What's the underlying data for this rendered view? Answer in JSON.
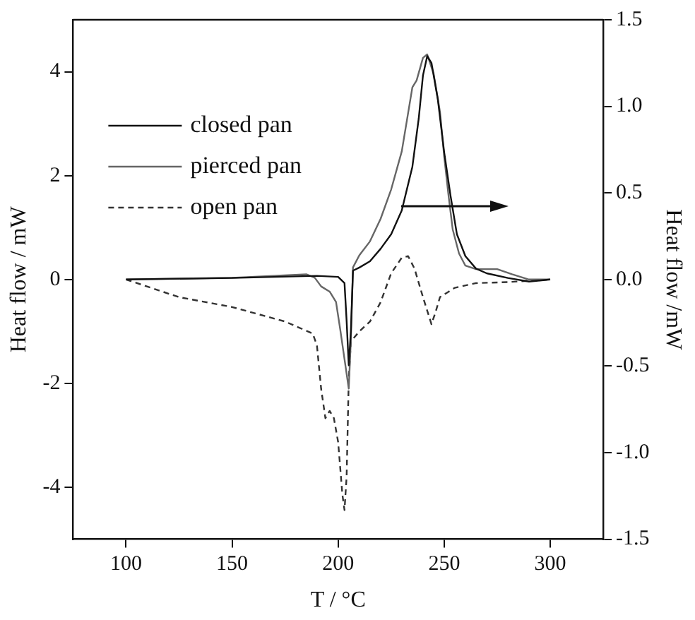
{
  "chart_data": {
    "type": "line",
    "xlabel": "T / °C",
    "ylabel": "Heat flow / mW",
    "y2label": "Heat flow /mW",
    "xlim": [
      75,
      325
    ],
    "xticks": [
      100,
      150,
      200,
      250,
      300
    ],
    "ylim": [
      -5,
      5
    ],
    "yticks": [
      -4,
      -2,
      0,
      2,
      4
    ],
    "y2lim": [
      -1.5,
      1.5
    ],
    "y2ticks": [
      {
        "value": -1.5,
        "label": "-1.5"
      },
      {
        "value": -1,
        "label": "-1.0"
      },
      {
        "value": -0.5,
        "label": "-0.5"
      },
      {
        "value": 0,
        "label": "0.0"
      },
      {
        "value": 0.5,
        "label": "0.5"
      },
      {
        "value": 1,
        "label": "1.0"
      },
      {
        "value": 1.5,
        "label": "1.5"
      }
    ],
    "legend": "top left",
    "grid": false,
    "marker": "none",
    "series": [
      {
        "name": "closed pan",
        "color": "#111111",
        "line_style": "solid",
        "x": [
          100,
          150,
          190,
          200,
          203,
          204,
          205,
          206,
          207,
          210,
          215,
          220,
          225,
          230,
          235,
          238,
          240,
          242,
          244,
          247,
          250,
          253,
          256,
          260,
          265,
          270,
          280,
          290,
          300
        ],
        "values": [
          0,
          0.03,
          0.07,
          0.05,
          -0.07,
          -0.8,
          -1.65,
          -1.0,
          0.17,
          0.23,
          0.35,
          0.59,
          0.87,
          1.33,
          2.17,
          3.1,
          3.93,
          4.3,
          4.17,
          3.47,
          2.45,
          1.61,
          0.87,
          0.45,
          0.21,
          0.12,
          0.03,
          -0.04,
          0
        ]
      },
      {
        "name": "pierced pan",
        "color": "#666666",
        "line_style": "solid",
        "axis": "y2",
        "x": [
          100,
          150,
          185,
          189,
          192,
          196,
          199,
          201,
          203,
          205,
          206,
          207,
          210,
          215,
          220,
          225,
          230,
          235,
          237,
          240,
          242,
          245,
          248,
          250,
          252,
          254,
          257,
          260,
          265,
          275,
          282,
          290,
          300
        ],
        "values": [
          0,
          0.01,
          0.03,
          0.01,
          -0.04,
          -0.07,
          -0.13,
          -0.29,
          -0.46,
          -0.63,
          -0.35,
          0.07,
          0.14,
          0.22,
          0.35,
          0.52,
          0.74,
          1.11,
          1.15,
          1.28,
          1.3,
          1.19,
          0.97,
          0.71,
          0.49,
          0.29,
          0.15,
          0.08,
          0.06,
          0.06,
          0.03,
          0,
          0
        ]
      },
      {
        "name": "open pan",
        "color": "#333333",
        "line_style": "dashed",
        "x": [
          100,
          125,
          150,
          175,
          188,
          190,
          192,
          194,
          196,
          198,
          200,
          202,
          203,
          204,
          205,
          206,
          210,
          215,
          220,
          225,
          230,
          233,
          236,
          240,
          244,
          246,
          248,
          255,
          265,
          280,
          300
        ],
        "values": [
          0,
          -0.34,
          -0.53,
          -0.81,
          -1.04,
          -1.27,
          -2.11,
          -2.67,
          -2.53,
          -2.67,
          -3.13,
          -4.14,
          -4.44,
          -3.79,
          -1.93,
          -1.19,
          -1.0,
          -0.81,
          -0.44,
          0.12,
          0.42,
          0.45,
          0.21,
          -0.34,
          -0.86,
          -0.62,
          -0.34,
          -0.16,
          -0.07,
          -0.05,
          0
        ]
      }
    ]
  }
}
